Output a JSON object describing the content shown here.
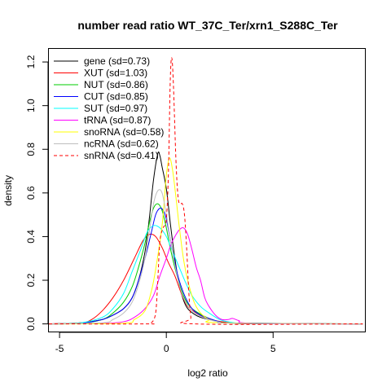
{
  "chart_data": {
    "type": "line",
    "title": "number read ratio WT_37C_Ter/xrn1_S288C_Ter",
    "xlabel": "log2 ratio",
    "ylabel": "density",
    "xlim": [
      -5.5,
      9.3
    ],
    "ylim": [
      -0.035,
      1.26
    ],
    "x_ticks": [
      -5,
      0,
      5
    ],
    "y_ticks": [
      0.0,
      0.2,
      0.4,
      0.6,
      0.8,
      1.0,
      1.2
    ],
    "x_tick_labels": [
      "-5",
      "0",
      "5"
    ],
    "y_tick_labels": [
      "0.0",
      "0.2",
      "0.4",
      "0.6",
      "0.8",
      "1.0",
      "1.2"
    ],
    "legend_position": "top-left",
    "grid": false,
    "series": [
      {
        "name": "gene (sd=0.73)",
        "color": "#000000",
        "dash": "solid",
        "points": [
          [
            -5.5,
            0
          ],
          [
            -4,
            0.005
          ],
          [
            -3,
            0.02
          ],
          [
            -2.5,
            0.04
          ],
          [
            -2,
            0.07
          ],
          [
            -1.6,
            0.12
          ],
          [
            -1.3,
            0.2
          ],
          [
            -1.0,
            0.33
          ],
          [
            -0.8,
            0.48
          ],
          [
            -0.6,
            0.66
          ],
          [
            -0.4,
            0.78
          ],
          [
            -0.3,
            0.77
          ],
          [
            -0.2,
            0.72
          ],
          [
            0,
            0.62
          ],
          [
            0.2,
            0.45
          ],
          [
            0.4,
            0.3
          ],
          [
            0.6,
            0.18
          ],
          [
            0.8,
            0.11
          ],
          [
            1.0,
            0.07
          ],
          [
            1.3,
            0.045
          ],
          [
            1.6,
            0.03
          ],
          [
            2,
            0.02
          ],
          [
            2.5,
            0.01
          ],
          [
            3,
            0.004
          ],
          [
            4,
            0.001
          ],
          [
            9.2,
            0
          ]
        ]
      },
      {
        "name": "XUT (sd=1.03)",
        "color": "#ff0000",
        "dash": "solid",
        "points": [
          [
            -5.5,
            0
          ],
          [
            -4,
            0.005
          ],
          [
            -3.5,
            0.02
          ],
          [
            -3,
            0.06
          ],
          [
            -2.5,
            0.12
          ],
          [
            -2,
            0.2
          ],
          [
            -1.5,
            0.3
          ],
          [
            -1.1,
            0.38
          ],
          [
            -0.8,
            0.41
          ],
          [
            -0.5,
            0.4
          ],
          [
            -0.2,
            0.35
          ],
          [
            0.1,
            0.28
          ],
          [
            0.4,
            0.22
          ],
          [
            0.7,
            0.14
          ],
          [
            1.0,
            0.08
          ],
          [
            1.4,
            0.05
          ],
          [
            1.8,
            0.03
          ],
          [
            2.3,
            0.015
          ],
          [
            3,
            0.005
          ],
          [
            4,
            0.001
          ],
          [
            9.2,
            0
          ]
        ]
      },
      {
        "name": "NUT (sd=0.86)",
        "color": "#00cc00",
        "dash": "solid",
        "points": [
          [
            -5.5,
            0
          ],
          [
            -4,
            0.003
          ],
          [
            -3,
            0.02
          ],
          [
            -2.5,
            0.05
          ],
          [
            -2,
            0.1
          ],
          [
            -1.6,
            0.17
          ],
          [
            -1.3,
            0.26
          ],
          [
            -1.0,
            0.37
          ],
          [
            -0.8,
            0.46
          ],
          [
            -0.6,
            0.53
          ],
          [
            -0.4,
            0.55
          ],
          [
            -0.2,
            0.52
          ],
          [
            0,
            0.44
          ],
          [
            0.2,
            0.34
          ],
          [
            0.5,
            0.22
          ],
          [
            0.8,
            0.13
          ],
          [
            1.1,
            0.08
          ],
          [
            1.5,
            0.05
          ],
          [
            2,
            0.025
          ],
          [
            2.5,
            0.01
          ],
          [
            3,
            0.004
          ],
          [
            9.2,
            0
          ]
        ]
      },
      {
        "name": "CUT (sd=0.85)",
        "color": "#0000ff",
        "dash": "solid",
        "points": [
          [
            -5.5,
            0
          ],
          [
            -4,
            0.003
          ],
          [
            -3,
            0.02
          ],
          [
            -2.5,
            0.04
          ],
          [
            -2,
            0.07
          ],
          [
            -1.6,
            0.12
          ],
          [
            -1.3,
            0.2
          ],
          [
            -1.0,
            0.3
          ],
          [
            -0.7,
            0.42
          ],
          [
            -0.5,
            0.5
          ],
          [
            -0.3,
            0.53
          ],
          [
            -0.15,
            0.52
          ],
          [
            0,
            0.48
          ],
          [
            0.2,
            0.38
          ],
          [
            0.4,
            0.28
          ],
          [
            0.6,
            0.2
          ],
          [
            0.9,
            0.12
          ],
          [
            1.2,
            0.07
          ],
          [
            1.6,
            0.04
          ],
          [
            2,
            0.025
          ],
          [
            2.5,
            0.01
          ],
          [
            3,
            0.004
          ],
          [
            9.2,
            0
          ]
        ]
      },
      {
        "name": "SUT (sd=0.97)",
        "color": "#00ffff",
        "dash": "solid",
        "points": [
          [
            -5.5,
            0
          ],
          [
            -4,
            0.005
          ],
          [
            -3,
            0.03
          ],
          [
            -2.5,
            0.07
          ],
          [
            -2,
            0.14
          ],
          [
            -1.6,
            0.24
          ],
          [
            -1.2,
            0.34
          ],
          [
            -0.9,
            0.42
          ],
          [
            -0.6,
            0.45
          ],
          [
            -0.3,
            0.44
          ],
          [
            0,
            0.4
          ],
          [
            0.3,
            0.33
          ],
          [
            0.6,
            0.26
          ],
          [
            0.9,
            0.19
          ],
          [
            1.2,
            0.13
          ],
          [
            1.6,
            0.08
          ],
          [
            2,
            0.05
          ],
          [
            2.5,
            0.02
          ],
          [
            3,
            0.008
          ],
          [
            4,
            0.002
          ],
          [
            9.2,
            0
          ]
        ]
      },
      {
        "name": "tRNA (sd=0.87)",
        "color": "#ff00ff",
        "dash": "solid",
        "points": [
          [
            -5.5,
            0
          ],
          [
            -3,
            0.002
          ],
          [
            -2,
            0.01
          ],
          [
            -1.5,
            0.03
          ],
          [
            -1,
            0.07
          ],
          [
            -0.6,
            0.13
          ],
          [
            -0.3,
            0.22
          ],
          [
            0,
            0.3
          ],
          [
            0.2,
            0.36
          ],
          [
            0.4,
            0.4
          ],
          [
            0.6,
            0.43
          ],
          [
            0.8,
            0.44
          ],
          [
            1.0,
            0.41
          ],
          [
            1.2,
            0.34
          ],
          [
            1.4,
            0.26
          ],
          [
            1.6,
            0.2
          ],
          [
            1.8,
            0.12
          ],
          [
            2.0,
            0.08
          ],
          [
            2.3,
            0.04
          ],
          [
            2.6,
            0.02
          ],
          [
            2.9,
            0.02
          ],
          [
            3.1,
            0.025
          ],
          [
            3.4,
            0.015
          ],
          [
            4,
            0.003
          ],
          [
            9.2,
            0
          ]
        ]
      },
      {
        "name": "snoRNA (sd=0.58)",
        "color": "#ffff00",
        "dash": "solid",
        "points": [
          [
            -5.5,
            0
          ],
          [
            -2,
            0.003
          ],
          [
            -1.5,
            0.02
          ],
          [
            -1,
            0.06
          ],
          [
            -0.7,
            0.15
          ],
          [
            -0.5,
            0.25
          ],
          [
            -0.2,
            0.45
          ],
          [
            0,
            0.68
          ],
          [
            0.15,
            0.76
          ],
          [
            0.3,
            0.7
          ],
          [
            0.45,
            0.58
          ],
          [
            0.6,
            0.45
          ],
          [
            0.8,
            0.3
          ],
          [
            1.0,
            0.2
          ],
          [
            1.3,
            0.1
          ],
          [
            1.6,
            0.05
          ],
          [
            2,
            0.02
          ],
          [
            2.5,
            0.005
          ],
          [
            9.2,
            0
          ]
        ]
      },
      {
        "name": "ncRNA (sd=0.62)",
        "color": "#bebebe",
        "dash": "solid",
        "points": [
          [
            -5.5,
            0
          ],
          [
            -3,
            0.005
          ],
          [
            -2.5,
            0.02
          ],
          [
            -2,
            0.05
          ],
          [
            -1.6,
            0.1
          ],
          [
            -1.3,
            0.18
          ],
          [
            -1.0,
            0.3
          ],
          [
            -0.8,
            0.42
          ],
          [
            -0.6,
            0.55
          ],
          [
            -0.4,
            0.61
          ],
          [
            -0.2,
            0.6
          ],
          [
            0,
            0.5
          ],
          [
            0.2,
            0.38
          ],
          [
            0.4,
            0.27
          ],
          [
            0.6,
            0.18
          ],
          [
            0.8,
            0.12
          ],
          [
            1.1,
            0.07
          ],
          [
            1.5,
            0.04
          ],
          [
            2,
            0.02
          ],
          [
            2.5,
            0.008
          ],
          [
            3,
            0.003
          ],
          [
            9.2,
            0
          ]
        ]
      },
      {
        "name": "snRNA (sd=0.41)",
        "color": "#ff0000",
        "dash": "dashed",
        "points": [
          [
            -5.5,
            0
          ],
          [
            -1,
            0
          ],
          [
            -0.7,
            0.005
          ],
          [
            -0.5,
            0.05
          ],
          [
            -0.4,
            0.2
          ],
          [
            -0.3,
            0.38
          ],
          [
            -0.15,
            0.44
          ],
          [
            0,
            0.48
          ],
          [
            0.1,
            0.7
          ],
          [
            0.18,
            1.1
          ],
          [
            0.25,
            1.22
          ],
          [
            0.33,
            1.1
          ],
          [
            0.45,
            0.75
          ],
          [
            0.55,
            0.58
          ],
          [
            0.65,
            0.55
          ],
          [
            0.75,
            0.55
          ],
          [
            0.85,
            0.5
          ],
          [
            0.95,
            0.35
          ],
          [
            1.05,
            0.15
          ],
          [
            1.15,
            0.03
          ],
          [
            1.3,
            0
          ],
          [
            9.2,
            0
          ]
        ]
      }
    ]
  }
}
